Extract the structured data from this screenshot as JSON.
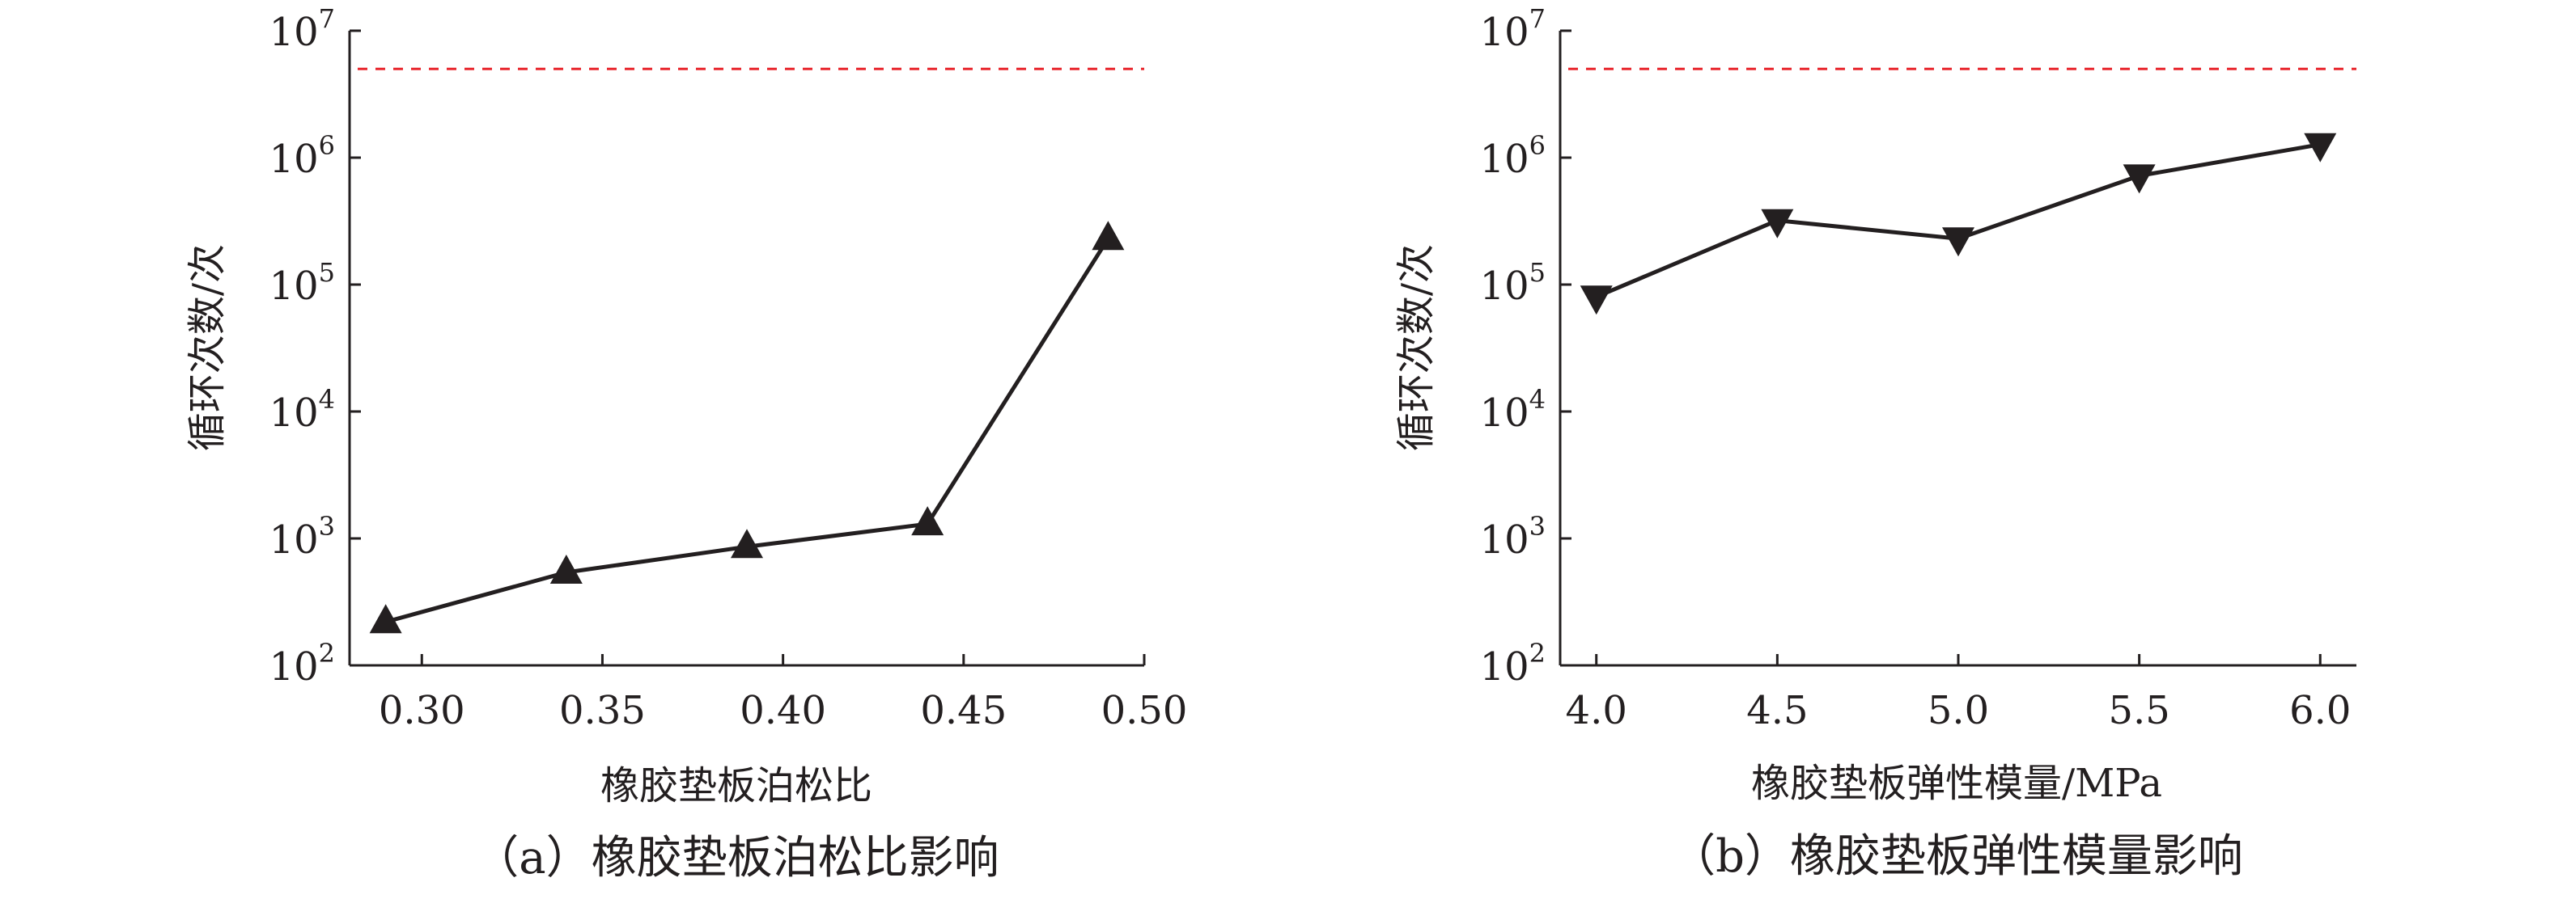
{
  "chart_data": [
    {
      "type": "line",
      "panel_caption": "（a）橡胶垫板泊松比影响",
      "xlabel": "橡胶垫板泊松比",
      "ylabel": "循环次数/次",
      "y_scale": "log",
      "xlim": [
        0.28,
        0.5
      ],
      "ylim": [
        100,
        10000000
      ],
      "x_ticks": [
        "0.30",
        "0.35",
        "0.40",
        "0.45",
        "0.50"
      ],
      "y_ticks": [
        {
          "base": "10",
          "exp": "2"
        },
        {
          "base": "10",
          "exp": "3"
        },
        {
          "base": "10",
          "exp": "4"
        },
        {
          "base": "10",
          "exp": "5"
        },
        {
          "base": "10",
          "exp": "6"
        },
        {
          "base": "10",
          "exp": "7"
        }
      ],
      "marker": "triangle-up",
      "series": [
        {
          "x": [
            0.29,
            0.34,
            0.39,
            0.44,
            0.49
          ],
          "y": [
            220,
            540,
            860,
            1300,
            230000
          ]
        }
      ],
      "reference_line": {
        "y": 5000000,
        "color": "#e8262d",
        "style": "dashed"
      }
    },
    {
      "type": "line",
      "panel_caption": "（b）橡胶垫板弹性模量影响",
      "xlabel": "橡胶垫板弹性模量/MPa",
      "ylabel": "循环次数/次",
      "y_scale": "log",
      "xlim": [
        3.9,
        6.1
      ],
      "ylim": [
        100,
        10000000
      ],
      "x_ticks": [
        "4.0",
        "4.5",
        "5.0",
        "5.5",
        "6.0"
      ],
      "y_ticks": [
        {
          "base": "10",
          "exp": "2"
        },
        {
          "base": "10",
          "exp": "3"
        },
        {
          "base": "10",
          "exp": "4"
        },
        {
          "base": "10",
          "exp": "5"
        },
        {
          "base": "10",
          "exp": "6"
        },
        {
          "base": "10",
          "exp": "7"
        }
      ],
      "marker": "triangle-down",
      "series": [
        {
          "x": [
            4.0,
            4.5,
            5.0,
            5.5,
            6.0
          ],
          "y": [
            80000,
            320000,
            230000,
            720000,
            1270000
          ]
        }
      ],
      "reference_line": {
        "y": 5000000,
        "color": "#e8262d",
        "style": "dashed"
      }
    }
  ]
}
